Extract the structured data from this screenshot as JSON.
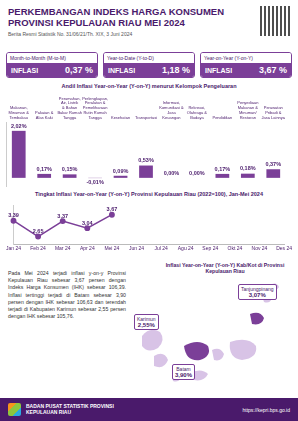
{
  "header": {
    "title": "PERKEMBANGAN INDEKS HARGA KONSUMEN PROVINSI KEPULAUAN RIAU MEI 2024",
    "subtitle": "Berita Resmi Statistik No. 31/06/21/Th. XIX, 3 Juni 2024"
  },
  "summary": [
    {
      "label": "Month-to-Month (M-to-M)",
      "kind": "INFLASI",
      "value": "0,37 %"
    },
    {
      "label": "Year-to-Date (Y-to-D)",
      "kind": "INFLASI",
      "value": "1,18 %"
    },
    {
      "label": "Year-on-Year (Y-on-Y)",
      "kind": "INFLASI",
      "value": "3,67 %"
    }
  ],
  "chart_data": [
    {
      "type": "bar",
      "title": "Andil Inflasi Year-on-Year (Y-on-Y) menurut Kelompok Pengeluaran",
      "categories": [
        "Makanan, Minuman & Tembakau",
        "Pakaian & Alas Kaki",
        "Perumahan, Air, Listrik & Bahan Bakar Rumah Tangga",
        "Perlengkapan, Peralatan & Pemeliharaan Rutin Rumah Tangga",
        "Kesehatan",
        "Transportasi",
        "Informasi, Komunikasi & Jasa Keuangan",
        "Rekreasi, Olahraga & Budaya",
        "Pendidikan",
        "Penyediaan Makanan & Minuman/ Restoran",
        "Perawatan Pribadi & Jasa Lainnya"
      ],
      "values": [
        2.02,
        0.17,
        0.15,
        -0.01,
        0.09,
        0.53,
        0.0,
        0.0,
        0.17,
        0.18,
        0.37
      ],
      "value_labels": [
        "2,02%",
        "0,17%",
        "0,15%",
        "-0,01%",
        "0,09%",
        "0,53%",
        "0,00%",
        "0,00%",
        "0,17%",
        "0,18%",
        "0,37%"
      ],
      "color": "#7b3f98",
      "ylim": [
        -0.35,
        2.4
      ],
      "data_labels": true,
      "tick_labels": "x",
      "grid": false
    },
    {
      "type": "line",
      "title": "Tingkat Inflasi Year-on-Year (Y-on-Y) Provinsi Kepulauan Riau (2022=100), Jan-Mei 2024",
      "categories": [
        "Jan 24",
        "Feb 24",
        "Mar 24",
        "Apr 24",
        "Mei 24",
        "Jun 24",
        "Jul 24",
        "Agu 24",
        "Sep 24",
        "Okt 24",
        "Nov 24",
        "Des 24"
      ],
      "values": [
        3.39,
        2.65,
        3.37,
        3.04,
        3.67,
        null,
        null,
        null,
        null,
        null,
        null,
        null
      ],
      "value_labels": [
        "3,39",
        "2,65",
        "3,37",
        "3,04",
        "3,67",
        null,
        null,
        null,
        null,
        null,
        null,
        null
      ],
      "color": "#7b3f98",
      "ylim": [
        2.3,
        4.1
      ],
      "data_labels": true,
      "tick_labels": "x",
      "grid": false,
      "marker": "circle"
    }
  ],
  "description": "Pada Mei 2024 terjadi inflasi y-on-y Provinsi Kepulauan Riau sebesar 3,67 persen dengan Indeks Harga Konsumen (IHK) sebesar 106,39. Inflasi tertinggi terjadi di Batam sebesar 3,90 persen dengan IHK sebesar 106,63 dan terendah terjadi di Kabupaten Karimun sebesar 2,55 persen dengan IHK sebesar 105,76.",
  "map": {
    "title": "Inflasi Year-on-Year (Y-on-Y) Kab/Kot di Provinsi Kepulauan Riau",
    "regions": [
      {
        "name": "Karimun",
        "value": "2,55%"
      },
      {
        "name": "Batam",
        "value": "3,90%"
      },
      {
        "name": "Tanjungpinang",
        "value": "3,07%"
      }
    ]
  },
  "footer": {
    "agency": "BADAN PUSAT STATISTIK PROVINSI KEPULAUAN RIAU",
    "url": "https://kepri.bps.go.id"
  }
}
